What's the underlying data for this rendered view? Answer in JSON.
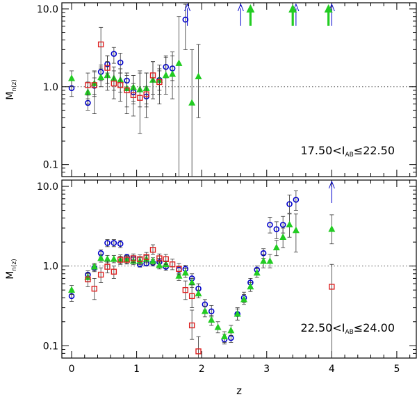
{
  "chart_data": [
    {
      "type": "scatter",
      "panel": "top",
      "ylabel": {
        "main": "M",
        "sub": "n(z)"
      },
      "annotation": {
        "left": "17.50<I",
        "sub": "AB",
        "right": "≤22.50"
      },
      "yscale": "log",
      "ylim": [
        0.07,
        12
      ],
      "xlim": [
        -0.15,
        5.3
      ],
      "yticks": [
        {
          "v": 0.1,
          "label": "0.1"
        },
        {
          "v": 1.0,
          "label": "1.0"
        },
        {
          "v": 10.0,
          "label": "10.0"
        }
      ],
      "reference_line": 1.0,
      "series": [
        {
          "marker": "circle",
          "color": "#0000cc",
          "points": [
            [
              0.0,
              0.96,
              0.75,
              1.2
            ],
            [
              0.25,
              0.62,
              0.5,
              0.78
            ],
            [
              0.35,
              1.03,
              0.8,
              1.3
            ],
            [
              0.45,
              1.55,
              1.2,
              1.9
            ],
            [
              0.55,
              1.95,
              1.5,
              2.5
            ],
            [
              0.65,
              2.65,
              2.0,
              3.2
            ],
            [
              0.75,
              2.05,
              1.5,
              2.7
            ],
            [
              0.85,
              1.2,
              0.9,
              1.5
            ],
            [
              0.95,
              0.85,
              0.6,
              1.1
            ],
            [
              1.15,
              0.75,
              0.55,
              1.0
            ],
            [
              1.35,
              1.22,
              0.9,
              1.6
            ],
            [
              1.45,
              1.8,
              1.3,
              2.5
            ],
            [
              1.55,
              1.72,
              1.2,
              2.5
            ],
            [
              1.75,
              7.3,
              3.0,
              11.5
            ]
          ],
          "arrows": [
            1.78,
            2.6,
            3.45,
            4.0
          ]
        },
        {
          "marker": "triangle",
          "color": "#22cc22",
          "points": [
            [
              0.0,
              1.28,
              1.0,
              1.6
            ],
            [
              0.25,
              0.85,
              0.6,
              1.15
            ],
            [
              0.35,
              1.1,
              0.75,
              1.55
            ],
            [
              0.45,
              1.32,
              1.0,
              1.8
            ],
            [
              0.55,
              1.4,
              0.9,
              2.1
            ],
            [
              0.65,
              1.28,
              0.9,
              1.8
            ],
            [
              0.75,
              1.22,
              0.85,
              1.7
            ],
            [
              0.85,
              0.95,
              0.55,
              1.5
            ],
            [
              0.95,
              0.98,
              0.65,
              1.4
            ],
            [
              1.05,
              0.92,
              0.55,
              1.6
            ],
            [
              1.15,
              0.95,
              0.6,
              1.5
            ],
            [
              1.25,
              1.22,
              0.7,
              2.1
            ],
            [
              1.35,
              1.22,
              0.8,
              1.9
            ],
            [
              1.45,
              1.4,
              0.8,
              2.4
            ],
            [
              1.55,
              1.45,
              0.7,
              2.8
            ],
            [
              1.65,
              2.0,
              0.07,
              8.0
            ],
            [
              1.85,
              0.62,
              0.07,
              3.0
            ],
            [
              1.95,
              1.35,
              0.4,
              3.5
            ]
          ],
          "arrows": [
            2.75,
            3.4,
            3.95
          ]
        },
        {
          "marker": "square",
          "color": "#dd2222",
          "points": [
            [
              0.25,
              1.05,
              0.7,
              1.5
            ],
            [
              0.35,
              1.05,
              0.45,
              1.6
            ],
            [
              0.45,
              3.5,
              1.7,
              5.8
            ],
            [
              0.55,
              1.75,
              1.1,
              2.5
            ],
            [
              0.65,
              1.1,
              0.7,
              1.6
            ],
            [
              0.75,
              1.05,
              0.65,
              1.5
            ],
            [
              0.85,
              0.9,
              0.45,
              1.4
            ],
            [
              0.95,
              0.78,
              0.42,
              1.4
            ],
            [
              1.05,
              0.72,
              0.25,
              1.5
            ],
            [
              1.15,
              0.8,
              0.4,
              1.5
            ],
            [
              1.25,
              1.4,
              0.8,
              2.1
            ],
            [
              1.35,
              1.15,
              0.6,
              1.7
            ]
          ]
        }
      ]
    },
    {
      "type": "scatter",
      "panel": "bottom",
      "ylabel": {
        "main": "M",
        "sub": "n(z)"
      },
      "annotation": {
        "left": "22.50<I",
        "sub": "AB",
        "right": "≤24.00"
      },
      "xlabel": "z",
      "yscale": "log",
      "ylim": [
        0.07,
        12
      ],
      "xlim": [
        -0.15,
        5.3
      ],
      "xticks": [
        0,
        1,
        2,
        3,
        4,
        5
      ],
      "yticks": [
        {
          "v": 0.1,
          "label": "0.1"
        },
        {
          "v": 1.0,
          "label": "1.0"
        },
        {
          "v": 10.0,
          "label": "10.0"
        }
      ],
      "reference_line": 1.0,
      "series": [
        {
          "marker": "circle",
          "color": "#0000cc",
          "points": [
            [
              0.0,
              0.42,
              0.36,
              0.5
            ],
            [
              0.25,
              0.78,
              0.7,
              0.87
            ],
            [
              0.35,
              0.95,
              0.85,
              1.05
            ],
            [
              0.45,
              1.45,
              1.3,
              1.6
            ],
            [
              0.55,
              1.95,
              1.75,
              2.15
            ],
            [
              0.65,
              1.95,
              1.75,
              2.15
            ],
            [
              0.75,
              1.9,
              1.7,
              2.1
            ],
            [
              0.85,
              1.3,
              1.2,
              1.4
            ],
            [
              0.95,
              1.25,
              1.15,
              1.35
            ],
            [
              1.05,
              1.05,
              0.97,
              1.13
            ],
            [
              1.15,
              1.08,
              1.0,
              1.18
            ],
            [
              1.25,
              1.1,
              1.0,
              1.2
            ],
            [
              1.35,
              1.12,
              1.0,
              1.25
            ],
            [
              1.45,
              0.98,
              0.88,
              1.08
            ],
            [
              1.65,
              0.9,
              0.8,
              1.0
            ],
            [
              1.75,
              0.92,
              0.82,
              1.02
            ],
            [
              1.85,
              0.7,
              0.6,
              0.8
            ],
            [
              1.95,
              0.52,
              0.45,
              0.6
            ],
            [
              2.05,
              0.33,
              0.28,
              0.38
            ],
            [
              2.15,
              0.27,
              0.23,
              0.32
            ],
            [
              2.35,
              0.12,
              0.105,
              0.14
            ],
            [
              2.45,
              0.125,
              0.11,
              0.145
            ],
            [
              2.55,
              0.25,
              0.21,
              0.3
            ],
            [
              2.65,
              0.4,
              0.35,
              0.47
            ],
            [
              2.75,
              0.62,
              0.55,
              0.7
            ],
            [
              2.85,
              0.9,
              0.8,
              1.0
            ],
            [
              2.95,
              1.45,
              1.25,
              1.65
            ],
            [
              3.05,
              3.3,
              2.6,
              4.1
            ],
            [
              3.15,
              2.9,
              2.2,
              3.6
            ],
            [
              3.25,
              3.3,
              2.6,
              4.2
            ],
            [
              3.35,
              6.0,
              4.6,
              7.8
            ],
            [
              3.45,
              6.8,
              5.0,
              8.8
            ]
          ],
          "arrows": [
            4.0
          ]
        },
        {
          "marker": "triangle",
          "color": "#22cc22",
          "points": [
            [
              0.0,
              0.5,
              0.44,
              0.57
            ],
            [
              0.25,
              0.72,
              0.64,
              0.8
            ],
            [
              0.35,
              0.98,
              0.88,
              1.08
            ],
            [
              0.45,
              1.25,
              1.12,
              1.4
            ],
            [
              0.55,
              1.22,
              1.1,
              1.36
            ],
            [
              0.65,
              1.22,
              1.1,
              1.36
            ],
            [
              0.75,
              1.2,
              1.08,
              1.33
            ],
            [
              0.85,
              1.2,
              1.08,
              1.33
            ],
            [
              0.95,
              1.15,
              1.04,
              1.27
            ],
            [
              1.05,
              1.15,
              1.04,
              1.27
            ],
            [
              1.15,
              1.22,
              1.1,
              1.35
            ],
            [
              1.25,
              1.15,
              1.04,
              1.27
            ],
            [
              1.35,
              1.02,
              0.92,
              1.13
            ],
            [
              1.45,
              1.05,
              0.94,
              1.16
            ],
            [
              1.65,
              0.75,
              0.66,
              0.85
            ],
            [
              1.75,
              0.82,
              0.72,
              0.93
            ],
            [
              1.85,
              0.62,
              0.54,
              0.7
            ],
            [
              1.95,
              0.45,
              0.4,
              0.5
            ],
            [
              2.05,
              0.27,
              0.23,
              0.31
            ],
            [
              2.15,
              0.21,
              0.18,
              0.24
            ],
            [
              2.25,
              0.17,
              0.145,
              0.2
            ],
            [
              2.35,
              0.13,
              0.11,
              0.15
            ],
            [
              2.45,
              0.155,
              0.135,
              0.18
            ],
            [
              2.55,
              0.25,
              0.21,
              0.29
            ],
            [
              2.65,
              0.38,
              0.33,
              0.44
            ],
            [
              2.75,
              0.55,
              0.48,
              0.62
            ],
            [
              2.85,
              0.82,
              0.72,
              0.93
            ],
            [
              2.95,
              1.15,
              0.95,
              1.4
            ],
            [
              3.05,
              1.15,
              0.95,
              1.4
            ],
            [
              3.15,
              1.7,
              1.35,
              2.1
            ],
            [
              3.25,
              2.3,
              1.7,
              3.0
            ],
            [
              3.35,
              3.3,
              2.3,
              4.5
            ],
            [
              3.45,
              2.8,
              1.5,
              4.5
            ],
            [
              4.0,
              2.9,
              1.9,
              4.4
            ]
          ]
        },
        {
          "marker": "square",
          "color": "#dd2222",
          "points": [
            [
              0.25,
              0.68,
              0.55,
              0.82
            ],
            [
              0.35,
              0.52,
              0.38,
              0.7
            ],
            [
              0.45,
              0.78,
              0.62,
              0.95
            ],
            [
              0.55,
              0.98,
              0.82,
              1.15
            ],
            [
              0.65,
              0.85,
              0.7,
              1.0
            ],
            [
              0.75,
              1.2,
              1.05,
              1.38
            ],
            [
              0.85,
              1.2,
              1.06,
              1.36
            ],
            [
              0.95,
              1.25,
              1.1,
              1.42
            ],
            [
              1.05,
              1.22,
              1.08,
              1.38
            ],
            [
              1.15,
              1.3,
              1.15,
              1.48
            ],
            [
              1.25,
              1.6,
              1.4,
              1.85
            ],
            [
              1.35,
              1.25,
              1.1,
              1.42
            ],
            [
              1.45,
              1.22,
              1.05,
              1.4
            ],
            [
              1.55,
              1.05,
              0.9,
              1.22
            ],
            [
              1.65,
              0.92,
              0.78,
              1.08
            ],
            [
              1.75,
              0.5,
              0.38,
              0.65
            ],
            [
              1.85,
              0.42,
              0.3,
              0.58
            ],
            [
              1.85,
              0.18,
              0.12,
              0.28
            ],
            [
              1.95,
              0.085,
              0.07,
              0.13
            ],
            [
              4.0,
              0.55,
              0.07,
              1.05
            ]
          ]
        }
      ]
    }
  ]
}
